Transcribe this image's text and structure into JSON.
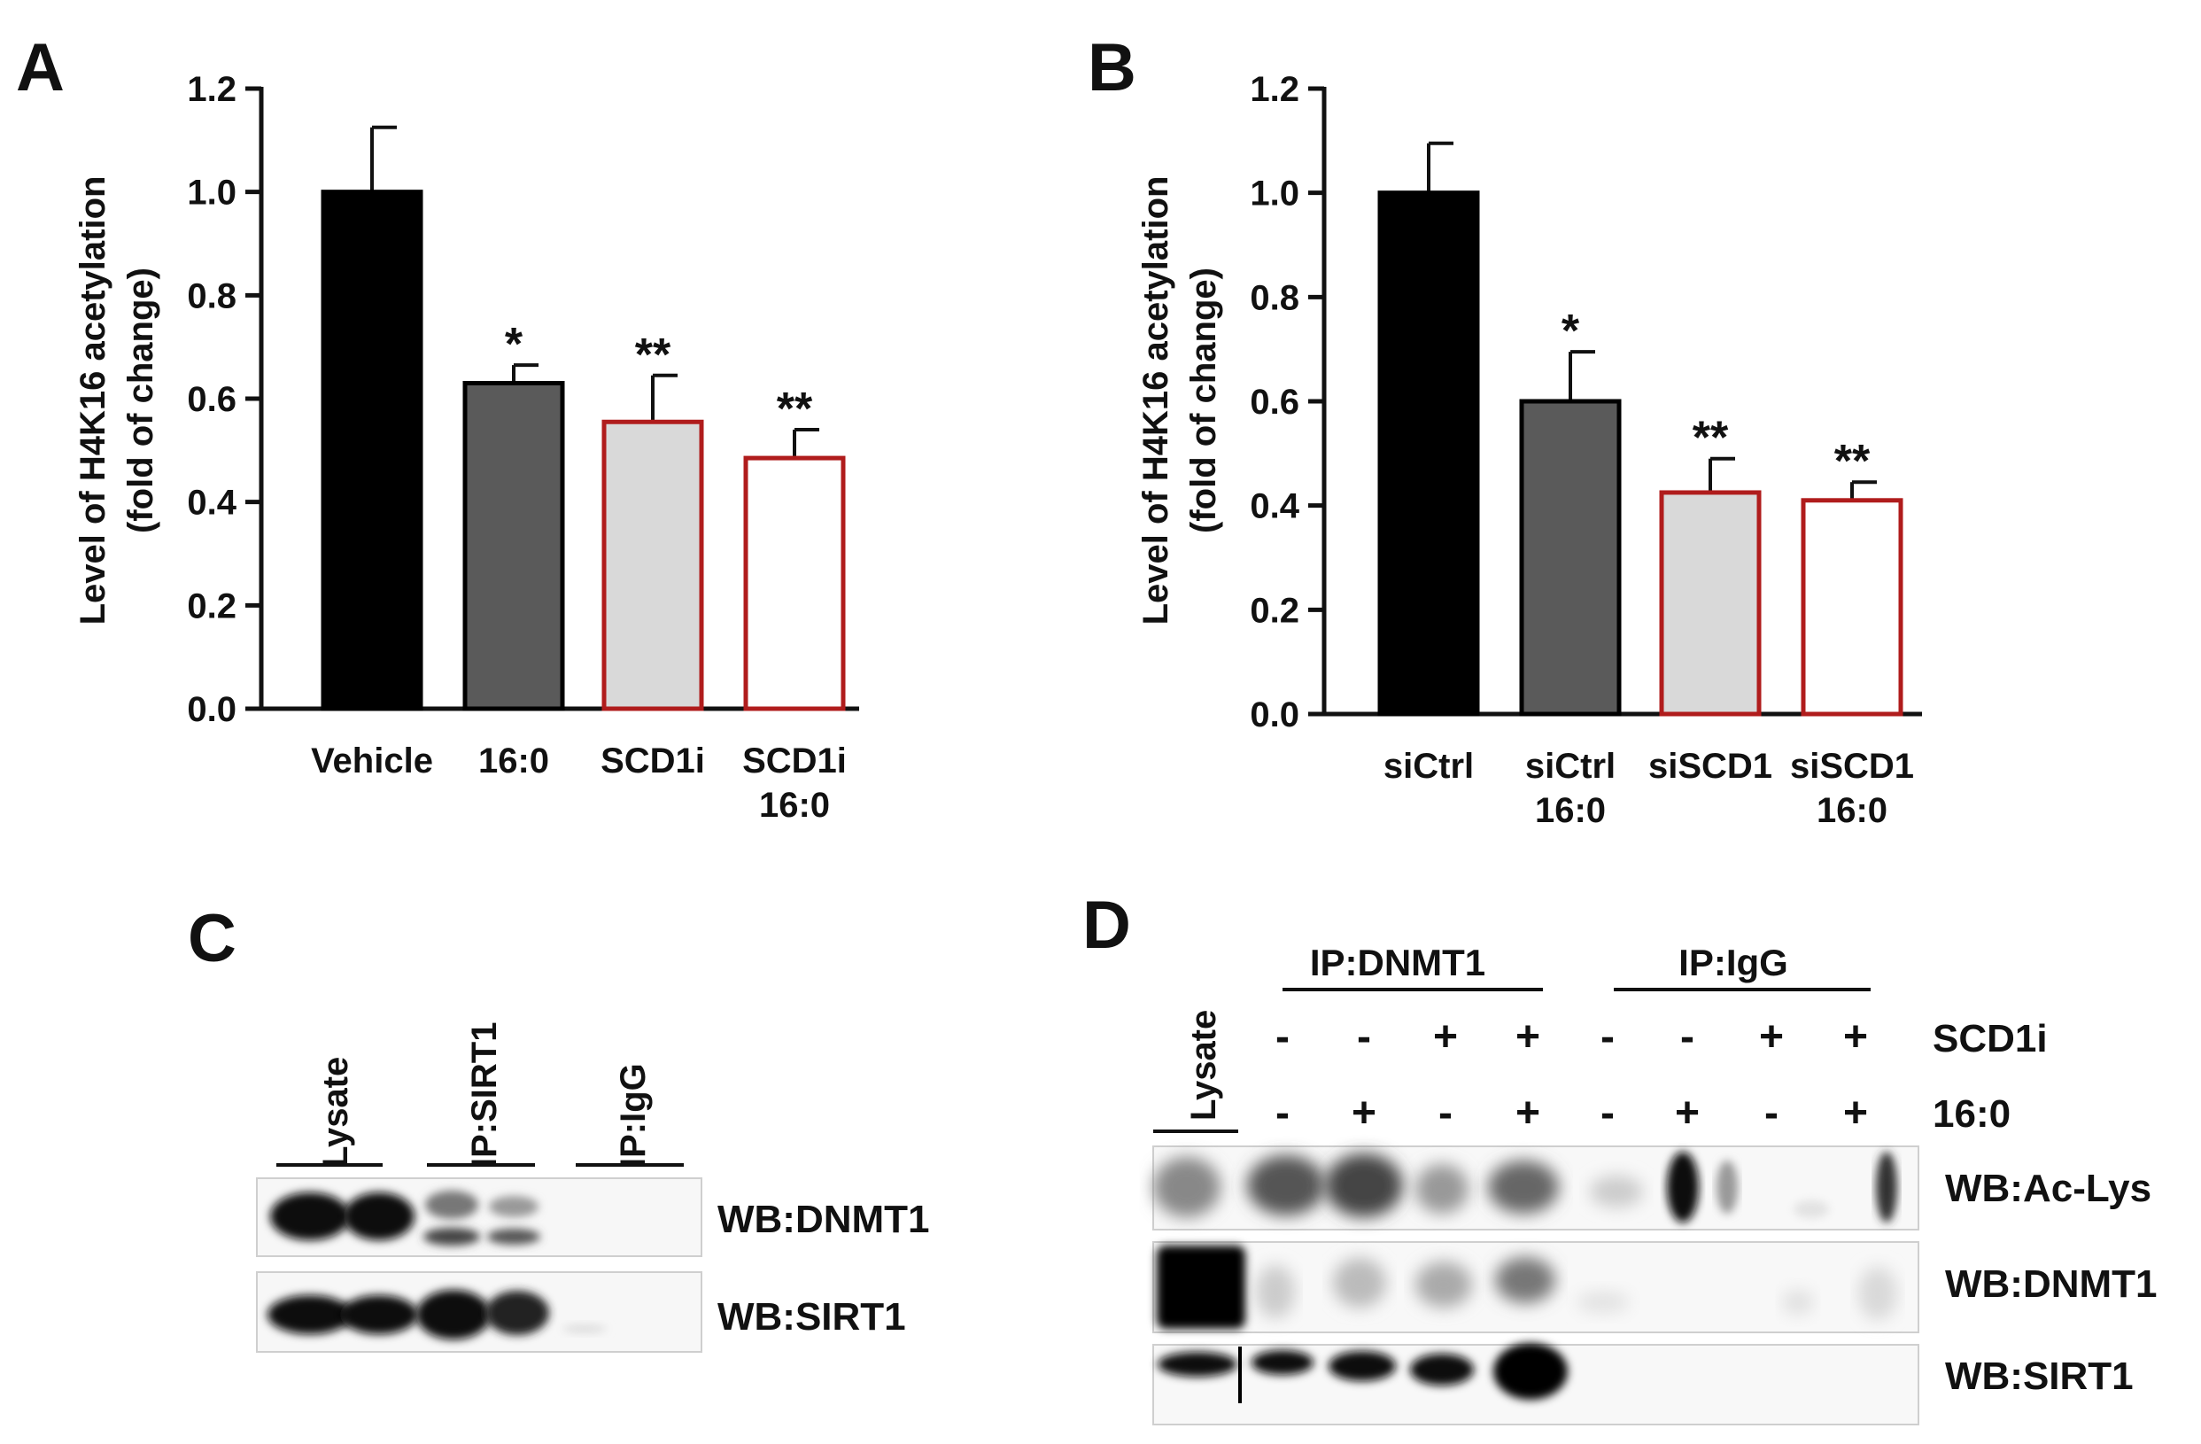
{
  "panel_labels": {
    "a": "A",
    "b": "B",
    "c": "C",
    "d": "D"
  },
  "colors": {
    "black": "#000000",
    "dark_gray": "#5a5a5a",
    "light_gray": "#d9d9d9",
    "white": "#ffffff",
    "red_border": "#b01c1c"
  },
  "chart_data": [
    {
      "panel": "A",
      "type": "bar",
      "ylabel_line1": "Level of H4K16 acetylation",
      "ylabel_line2": "(fold of change)",
      "ylim": [
        0,
        1.2
      ],
      "yticks": [
        "0.0",
        "0.2",
        "0.4",
        "0.6",
        "0.8",
        "1.0",
        "1.2"
      ],
      "categories": [
        {
          "line1": "Vehicle",
          "line2": ""
        },
        {
          "line1": "16:0",
          "line2": ""
        },
        {
          "line1": "SCD1i",
          "line2": ""
        },
        {
          "line1": "SCD1i",
          "line2": "16:0"
        }
      ],
      "values": [
        1.0,
        0.63,
        0.555,
        0.485
      ],
      "errors": [
        0.125,
        0.035,
        0.09,
        0.055
      ],
      "significance": [
        "",
        "*",
        "**",
        "**"
      ],
      "fills": [
        "black",
        "dark_gray",
        "light_gray",
        "white"
      ],
      "borders": [
        "black",
        "black",
        "red_border",
        "red_border"
      ]
    },
    {
      "panel": "B",
      "type": "bar",
      "ylabel_line1": "Level of H4K16 acetylation",
      "ylabel_line2": "(fold of change)",
      "ylim": [
        0,
        1.2
      ],
      "yticks": [
        "0.0",
        "0.2",
        "0.4",
        "0.6",
        "0.8",
        "1.0",
        "1.2"
      ],
      "categories": [
        {
          "line1": "siCtrl",
          "line2": ""
        },
        {
          "line1": "siCtrl",
          "line2": "16:0"
        },
        {
          "line1": "siSCD1",
          "line2": ""
        },
        {
          "line1": "siSCD1",
          "line2": "16:0"
        }
      ],
      "values": [
        1.0,
        0.6,
        0.425,
        0.41
      ],
      "errors": [
        0.095,
        0.095,
        0.065,
        0.035
      ],
      "significance": [
        "",
        "*",
        "**",
        "**"
      ],
      "fills": [
        "black",
        "dark_gray",
        "light_gray",
        "white"
      ],
      "borders": [
        "black",
        "black",
        "red_border",
        "red_border"
      ]
    }
  ],
  "panel_c": {
    "lanes": [
      "Lysate",
      "IP:SIRT1",
      "IP:IgG"
    ],
    "blots": [
      "WB:DNMT1",
      "WB:SIRT1"
    ]
  },
  "panel_d": {
    "lysate_label": "Lysate",
    "groups": [
      "IP:DNMT1",
      "IP:IgG"
    ],
    "row_labels": [
      "SCD1i",
      "16:0"
    ],
    "scd1i": [
      "-",
      "-",
      "+",
      "+",
      "-",
      "-",
      "+",
      "+"
    ],
    "palmitate": [
      "-",
      "+",
      "-",
      "+",
      "-",
      "+",
      "-",
      "+"
    ],
    "blots": [
      "WB:Ac-Lys",
      "WB:DNMT1",
      "WB:SIRT1"
    ]
  }
}
